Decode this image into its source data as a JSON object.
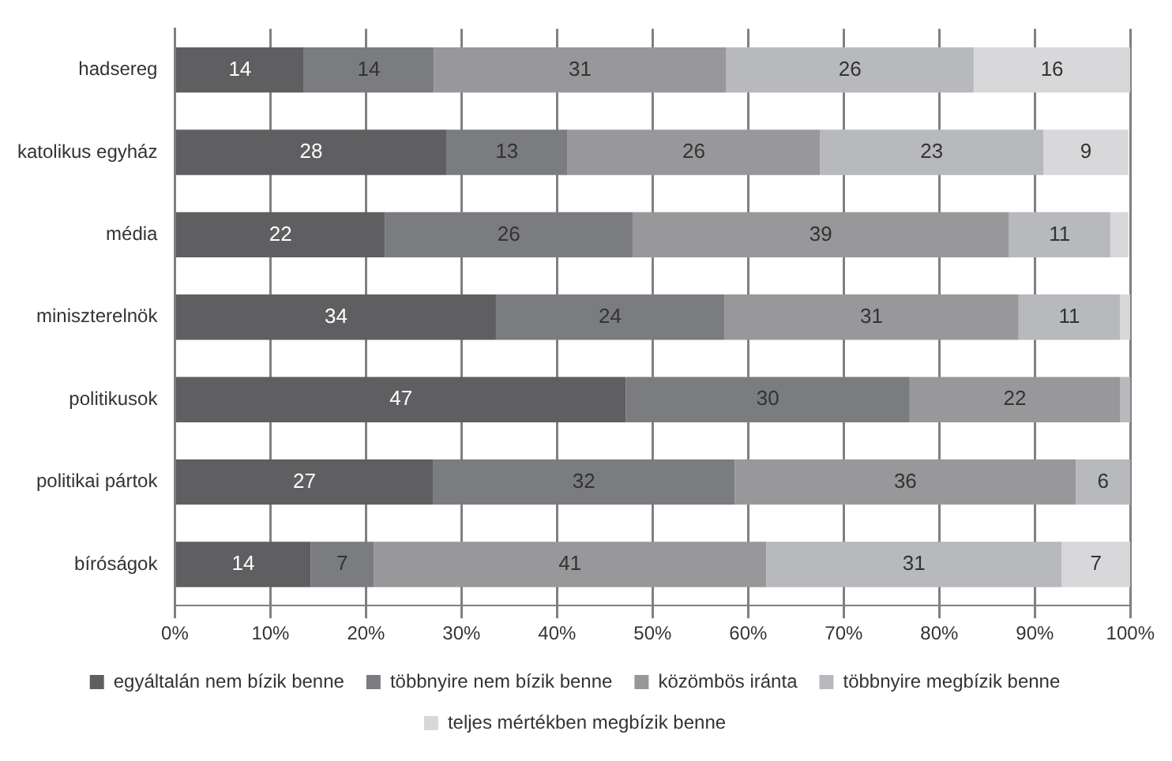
{
  "chart_data": {
    "type": "bar",
    "orientation": "horizontal",
    "stacked": true,
    "categories": [
      "hadsereg",
      "katolikus egyház",
      "média",
      "miniszterelnök",
      "politikusok",
      "politikai pártok",
      "bíróságok"
    ],
    "series": [
      {
        "name": "egyáltalán nem bízik benne",
        "color": "#5f5f61",
        "values": [
          13.5,
          28.4,
          22.0,
          33.6,
          47.2,
          27.0,
          14.2
        ],
        "value_labels": [
          "14",
          "28",
          "22",
          "34",
          "47",
          "27",
          "14"
        ]
      },
      {
        "name": "többnyire nem bízik benne",
        "color": "#7b7c7f",
        "values": [
          13.6,
          12.7,
          25.9,
          23.9,
          29.7,
          31.6,
          6.6
        ],
        "value_labels": [
          "14",
          "13",
          "26",
          "24",
          "30",
          "32",
          "7"
        ]
      },
      {
        "name": "közömbös iránta",
        "color": "#98989b",
        "values": [
          30.6,
          26.4,
          39.4,
          30.8,
          22.0,
          35.7,
          41.1
        ],
        "value_labels": [
          "31",
          "26",
          "39",
          "31",
          "22",
          "36",
          "41"
        ]
      },
      {
        "name": "többnyire megbízik benne",
        "color": "#b8b9bc",
        "values": [
          25.9,
          23.4,
          10.6,
          10.6,
          1.1,
          5.7,
          30.9
        ],
        "value_labels": [
          "26",
          "23",
          "11",
          "11",
          null,
          "6",
          "31"
        ]
      },
      {
        "name": "teljes mértékben megbízik benne",
        "color": "#d8d8da",
        "values": [
          16.4,
          8.9,
          1.9,
          1.1,
          null,
          null,
          7.2
        ],
        "value_labels": [
          "16",
          "9",
          null,
          null,
          null,
          null,
          "7"
        ]
      }
    ],
    "xlim": [
      0,
      100
    ],
    "xticks": [
      {
        "value": 0,
        "label": "0%"
      },
      {
        "value": 10,
        "label": "10%"
      },
      {
        "value": 20,
        "label": "20%"
      },
      {
        "value": 30,
        "label": "30%"
      },
      {
        "value": 40,
        "label": "40%"
      },
      {
        "value": 50,
        "label": "50%"
      },
      {
        "value": 60,
        "label": "60%"
      },
      {
        "value": 70,
        "label": "70%"
      },
      {
        "value": 80,
        "label": "80%"
      },
      {
        "value": 90,
        "label": "90%"
      },
      {
        "value": 100,
        "label": "100%"
      }
    ],
    "grid": "x",
    "legend": "bottom"
  }
}
